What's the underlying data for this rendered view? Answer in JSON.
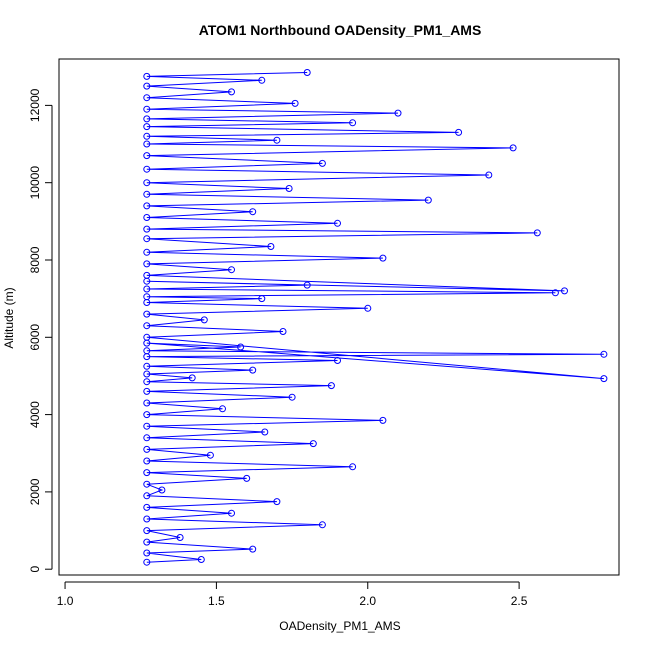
{
  "chart_data": {
    "type": "scatter",
    "title": "ATOM1 Northbound OADensity_PM1_AMS",
    "xlabel": "OADensity_PM1_AMS",
    "ylabel": "Altitude (m)",
    "xlim": [
      0.98,
      2.83
    ],
    "ylim": [
      -150,
      13200
    ],
    "xticks": [
      "1.0",
      "1.5",
      "2.0",
      "2.5"
    ],
    "xtick_values": [
      1.0,
      1.5,
      2.0,
      2.5
    ],
    "yticks": [
      "0",
      "2000",
      "4000",
      "6000",
      "8000",
      "10000",
      "12000"
    ],
    "ytick_values": [
      0,
      2000,
      4000,
      6000,
      8000,
      10000,
      12000
    ],
    "grid": false,
    "legend": "none",
    "marker": "open-circle",
    "connected_lines": true,
    "color": "#0000ff",
    "series": [
      {
        "x": [
          1.27,
          1.45,
          1.27,
          1.62,
          1.27,
          1.38,
          1.27,
          1.85,
          1.27,
          1.55,
          1.27,
          1.7,
          1.27,
          1.32,
          1.27,
          1.6,
          1.27,
          1.95,
          1.27,
          1.48,
          1.27,
          1.82,
          1.27,
          1.66,
          1.27,
          2.05,
          1.27,
          1.52,
          1.27,
          1.75,
          1.27,
          1.88,
          1.27,
          1.42,
          1.27,
          1.62,
          1.27,
          1.9,
          1.27,
          2.78,
          1.27,
          1.58,
          1.27,
          2.78,
          1.27,
          1.72,
          1.27,
          1.46,
          1.27,
          2.0,
          1.27,
          1.65,
          1.27,
          2.62,
          1.27,
          1.8,
          1.27,
          2.65,
          1.27,
          1.55,
          1.27,
          2.05,
          1.27,
          1.68,
          1.27,
          2.56,
          1.27,
          1.9,
          1.27,
          1.62,
          1.27,
          2.2,
          1.27,
          1.74,
          1.27,
          2.4,
          1.27,
          1.85,
          1.27,
          2.48,
          1.27,
          1.7,
          1.27,
          2.3,
          1.27,
          1.95,
          1.27,
          2.1,
          1.27,
          1.76,
          1.27,
          1.55,
          1.27,
          1.65,
          1.27,
          1.8
        ],
        "y": [
          180,
          250,
          420,
          520,
          700,
          820,
          1000,
          1150,
          1300,
          1450,
          1600,
          1750,
          1900,
          2050,
          2200,
          2350,
          2500,
          2650,
          2800,
          2950,
          3100,
          3250,
          3400,
          3550,
          3700,
          3850,
          4000,
          4150,
          4300,
          4450,
          4600,
          4750,
          4850,
          4950,
          5050,
          5150,
          5250,
          5400,
          5500,
          5560,
          5650,
          5750,
          5850,
          4930,
          6000,
          6150,
          6300,
          6450,
          6600,
          6750,
          6900,
          7000,
          7050,
          7150,
          7250,
          7350,
          7450,
          7200,
          7600,
          7750,
          7900,
          8050,
          8200,
          8350,
          8550,
          8700,
          8800,
          8950,
          9100,
          9250,
          9400,
          9550,
          9700,
          9850,
          10000,
          10200,
          10350,
          10500,
          10700,
          10900,
          11000,
          11100,
          11200,
          11300,
          11450,
          11550,
          11650,
          11800,
          11900,
          12050,
          12200,
          12350,
          12500,
          12650,
          12750,
          12850
        ]
      }
    ]
  }
}
